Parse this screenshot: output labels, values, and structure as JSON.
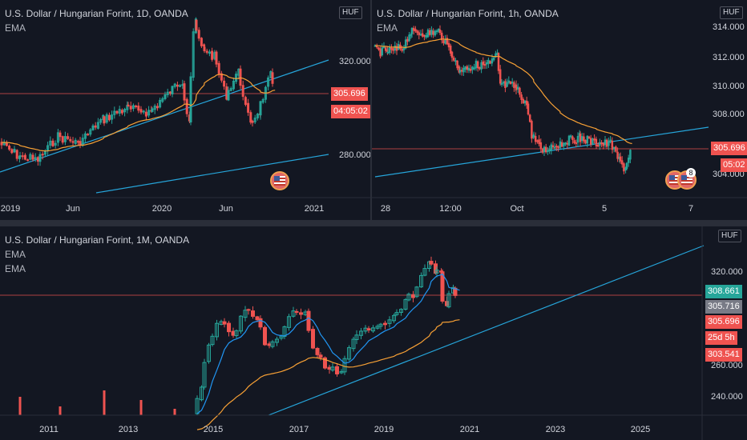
{
  "colors": {
    "up": "#26a69a",
    "down": "#ef5350",
    "ema": "#f7a035",
    "ema_fast": "#2196f3",
    "trend": "#26a5da",
    "price_line": "#ef5350"
  },
  "pane_tl": {
    "title": "U.S. Dollar / Hungarian Forint, 1D, OANDA",
    "indicators": [
      "EMA"
    ],
    "unit": "HUF",
    "y_ticks": [
      "320.000",
      "305.696",
      "280.000"
    ],
    "price_tag": "305.696",
    "countdown": "04:05:02",
    "x_labels": [
      "2019",
      "Jun",
      "2020",
      "Jun",
      "2021"
    ],
    "flag_icon": "us-flag-icon"
  },
  "pane_tr": {
    "title": "U.S. Dollar / Hungarian Forint, 1h, OANDA",
    "indicators": [
      "EMA"
    ],
    "unit": "HUF",
    "y_ticks": [
      "314.000",
      "312.000",
      "310.000",
      "308.000",
      "304.000"
    ],
    "price_tag": "305.696",
    "countdown": "05:02",
    "x_labels": [
      "28",
      "12:00",
      "Oct",
      "5",
      "7"
    ],
    "badge": "8",
    "flag_icon": "us-flag-icon"
  },
  "pane_bottom": {
    "title": "U.S. Dollar / Hungarian Forint, 1M, OANDA",
    "indicators": [
      "EMA",
      "EMA"
    ],
    "unit": "HUF",
    "y_ticks": [
      "320.000",
      "260.000",
      "240.000"
    ],
    "tags": [
      "308.661",
      "305.716",
      "305.696",
      "25d 5h",
      "303.541"
    ],
    "x_labels": [
      "2011",
      "2013",
      "2015",
      "2017",
      "2019",
      "2021",
      "2023",
      "2025"
    ]
  }
}
